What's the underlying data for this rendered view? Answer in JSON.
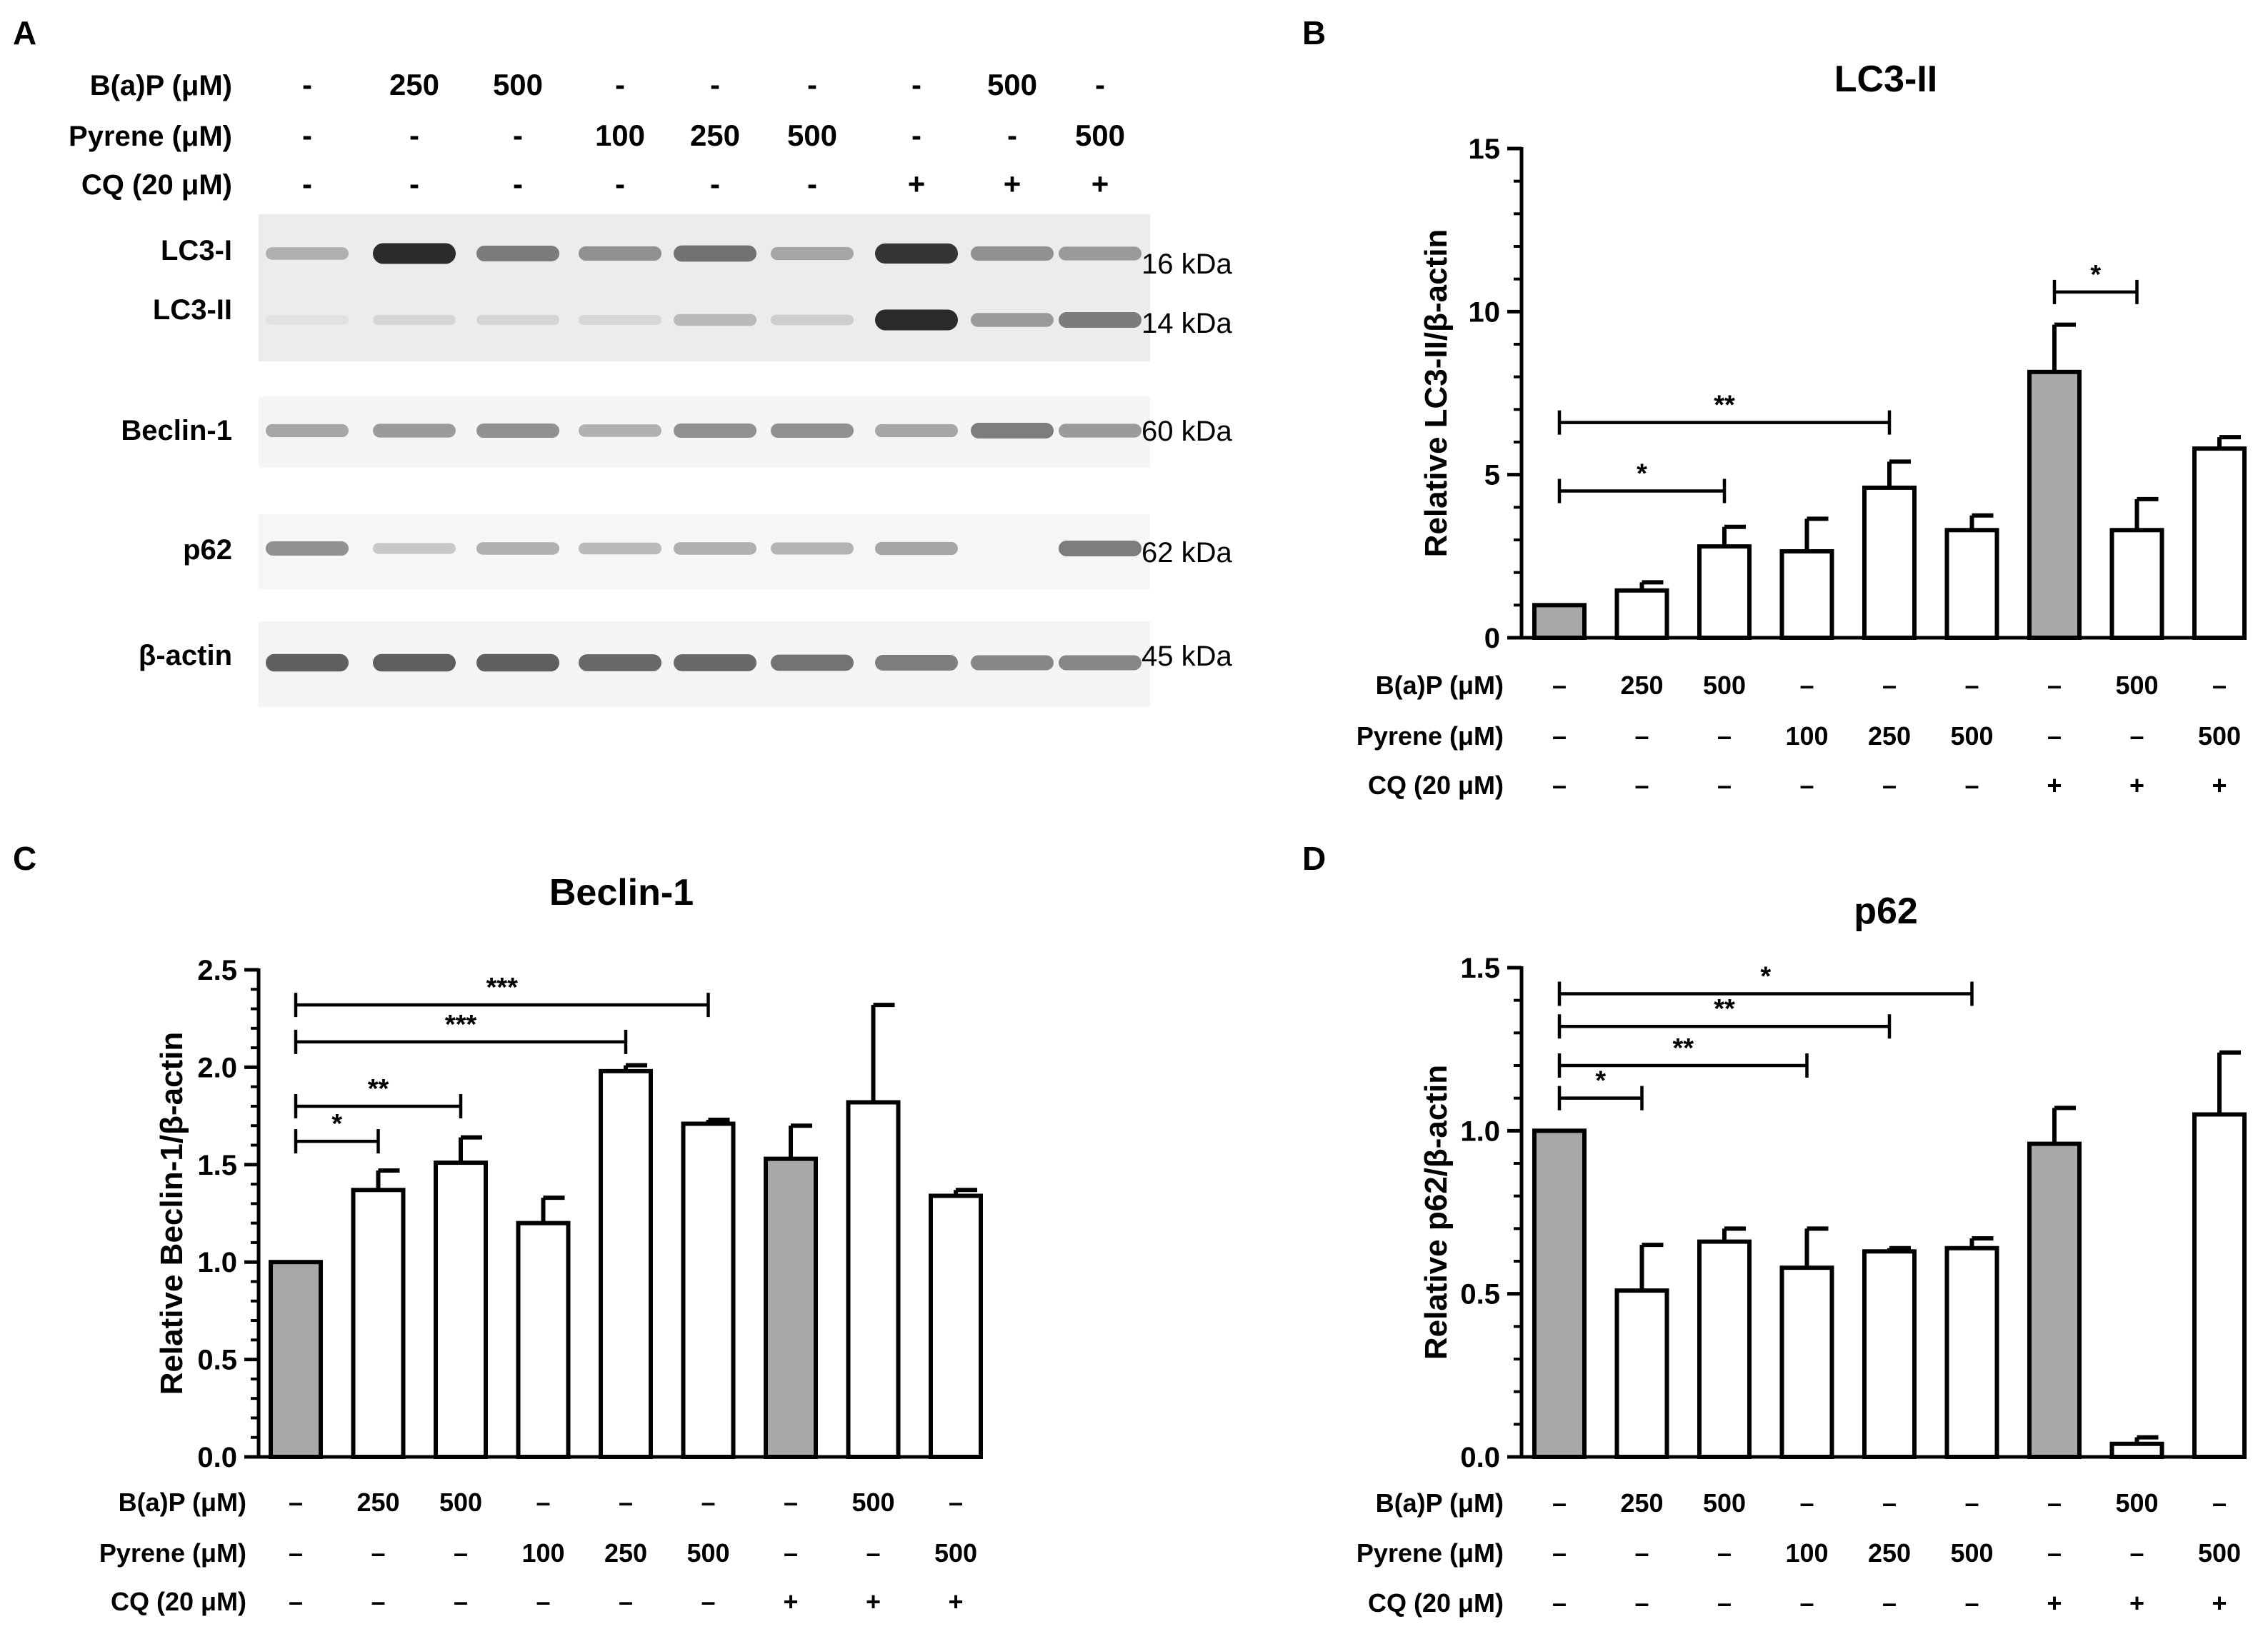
{
  "panel_labels": [
    "A",
    "B",
    "C",
    "D"
  ],
  "dash": "-",
  "en_dash": "–",
  "plus": "+",
  "treatment_labels": [
    "B(a)P (μM)",
    "Pyrene (μM)",
    "CQ (20 μM)"
  ],
  "conditions": {
    "bap": [
      "-",
      "250",
      "500",
      "-",
      "-",
      "-",
      "-",
      "500",
      "-"
    ],
    "pyrene": [
      "-",
      "-",
      "-",
      "100",
      "250",
      "500",
      "-",
      "-",
      "500"
    ],
    "cq": [
      "-",
      "-",
      "-",
      "-",
      "-",
      "-",
      "+",
      "+",
      "+"
    ]
  },
  "bar_fill_colors": [
    "#a8a8ab",
    "#ffffff",
    "#ffffff",
    "#ffffff",
    "#ffffff",
    "#ffffff",
    "#a8a8ab",
    "#ffffff",
    "#ffffff"
  ],
  "blot": {
    "rows": [
      {
        "label": "LC3-I",
        "kda": "16 kDa"
      },
      {
        "label": "LC3-II",
        "kda": "14 kDa"
      },
      {
        "label": "Beclin-1",
        "kda": "60 kDa"
      },
      {
        "label": "p62",
        "kda": "62 kDa"
      },
      {
        "label": "β-actin",
        "kda": "45 kDa"
      }
    ],
    "intensity": {
      "LC3-I": [
        0.3,
        0.95,
        0.55,
        0.45,
        0.6,
        0.35,
        0.9,
        0.45,
        0.4
      ],
      "LC3-II": [
        0.05,
        0.12,
        0.12,
        0.1,
        0.25,
        0.15,
        0.95,
        0.4,
        0.55
      ],
      "Beclin-1": [
        0.35,
        0.4,
        0.45,
        0.3,
        0.45,
        0.45,
        0.35,
        0.55,
        0.4
      ],
      "p62": [
        0.45,
        0.18,
        0.3,
        0.25,
        0.3,
        0.28,
        0.35,
        0.0,
        0.55
      ],
      "β-actin": [
        0.7,
        0.7,
        0.7,
        0.65,
        0.65,
        0.6,
        0.55,
        0.5,
        0.5
      ]
    }
  },
  "chart_data": [
    {
      "panel": "B",
      "type": "bar",
      "title": "LC3-II",
      "ylabel": "Relative LC3-II/β-actin",
      "ylim": [
        0,
        15
      ],
      "yticks": [
        0,
        5,
        10,
        15
      ],
      "ytick_labels": [
        "0",
        "5",
        "10",
        "15"
      ],
      "categories": [
        "Control",
        "B(a)P 250",
        "B(a)P 500",
        "Pyrene 100",
        "Pyrene 250",
        "Pyrene 500",
        "CQ",
        "CQ + B(a)P 500",
        "CQ + Pyrene 500"
      ],
      "values": [
        1.0,
        1.45,
        2.8,
        2.65,
        4.6,
        3.3,
        8.15,
        3.3,
        5.8
      ],
      "errors": [
        0.0,
        0.25,
        0.6,
        1.0,
        0.8,
        0.45,
        1.45,
        0.95,
        0.35
      ],
      "significance": [
        {
          "from": 0,
          "to": 2,
          "label": "*",
          "y": 4.5
        },
        {
          "from": 0,
          "to": 4,
          "label": "**",
          "y": 6.6
        },
        {
          "from": 6,
          "to": 7,
          "label": "*",
          "y": 10.6
        }
      ]
    },
    {
      "panel": "C",
      "type": "bar",
      "title": "Beclin-1",
      "ylabel": "Relative Beclin-1/β-actin",
      "ylim": [
        0,
        2.5
      ],
      "yticks": [
        0,
        0.5,
        1.0,
        1.5,
        2.0,
        2.5
      ],
      "ytick_labels": [
        "0.0",
        "0.5",
        "1.0",
        "1.5",
        "2.0",
        "2.5"
      ],
      "categories": [
        "Control",
        "B(a)P 250",
        "B(a)P 500",
        "Pyrene 100",
        "Pyrene 250",
        "Pyrene 500",
        "CQ",
        "CQ + B(a)P 500",
        "CQ + Pyrene 500"
      ],
      "values": [
        1.0,
        1.37,
        1.51,
        1.2,
        1.98,
        1.71,
        1.53,
        1.82,
        1.34
      ],
      "errors": [
        0.0,
        0.1,
        0.13,
        0.13,
        0.03,
        0.02,
        0.17,
        0.5,
        0.03
      ],
      "significance": [
        {
          "from": 0,
          "to": 1,
          "label": "*",
          "y": 1.62
        },
        {
          "from": 0,
          "to": 2,
          "label": "**",
          "y": 1.8
        },
        {
          "from": 0,
          "to": 4,
          "label": "***",
          "y": 2.13
        },
        {
          "from": 0,
          "to": 5,
          "label": "***",
          "y": 2.32
        }
      ]
    },
    {
      "panel": "D",
      "type": "bar",
      "title": "p62",
      "ylabel": "Relative p62/β-actin",
      "ylim": [
        0,
        1.5
      ],
      "yticks": [
        0,
        0.5,
        1.0,
        1.5
      ],
      "ytick_labels": [
        "0.0",
        "0.5",
        "1.0",
        "1.5"
      ],
      "categories": [
        "Control",
        "B(a)P 250",
        "B(a)P 500",
        "Pyrene 100",
        "Pyrene 250",
        "Pyrene 500",
        "CQ",
        "CQ + B(a)P 500",
        "CQ + Pyrene 500"
      ],
      "values": [
        1.0,
        0.51,
        0.66,
        0.58,
        0.63,
        0.64,
        0.96,
        0.04,
        1.05
      ],
      "errors": [
        0.0,
        0.14,
        0.04,
        0.12,
        0.01,
        0.03,
        0.11,
        0.02,
        0.19
      ],
      "significance": [
        {
          "from": 0,
          "to": 1,
          "label": "*",
          "y": 1.1
        },
        {
          "from": 0,
          "to": 3,
          "label": "**",
          "y": 1.2
        },
        {
          "from": 0,
          "to": 4,
          "label": "**",
          "y": 1.32
        },
        {
          "from": 0,
          "to": 5,
          "label": "*",
          "y": 1.42
        }
      ]
    }
  ]
}
